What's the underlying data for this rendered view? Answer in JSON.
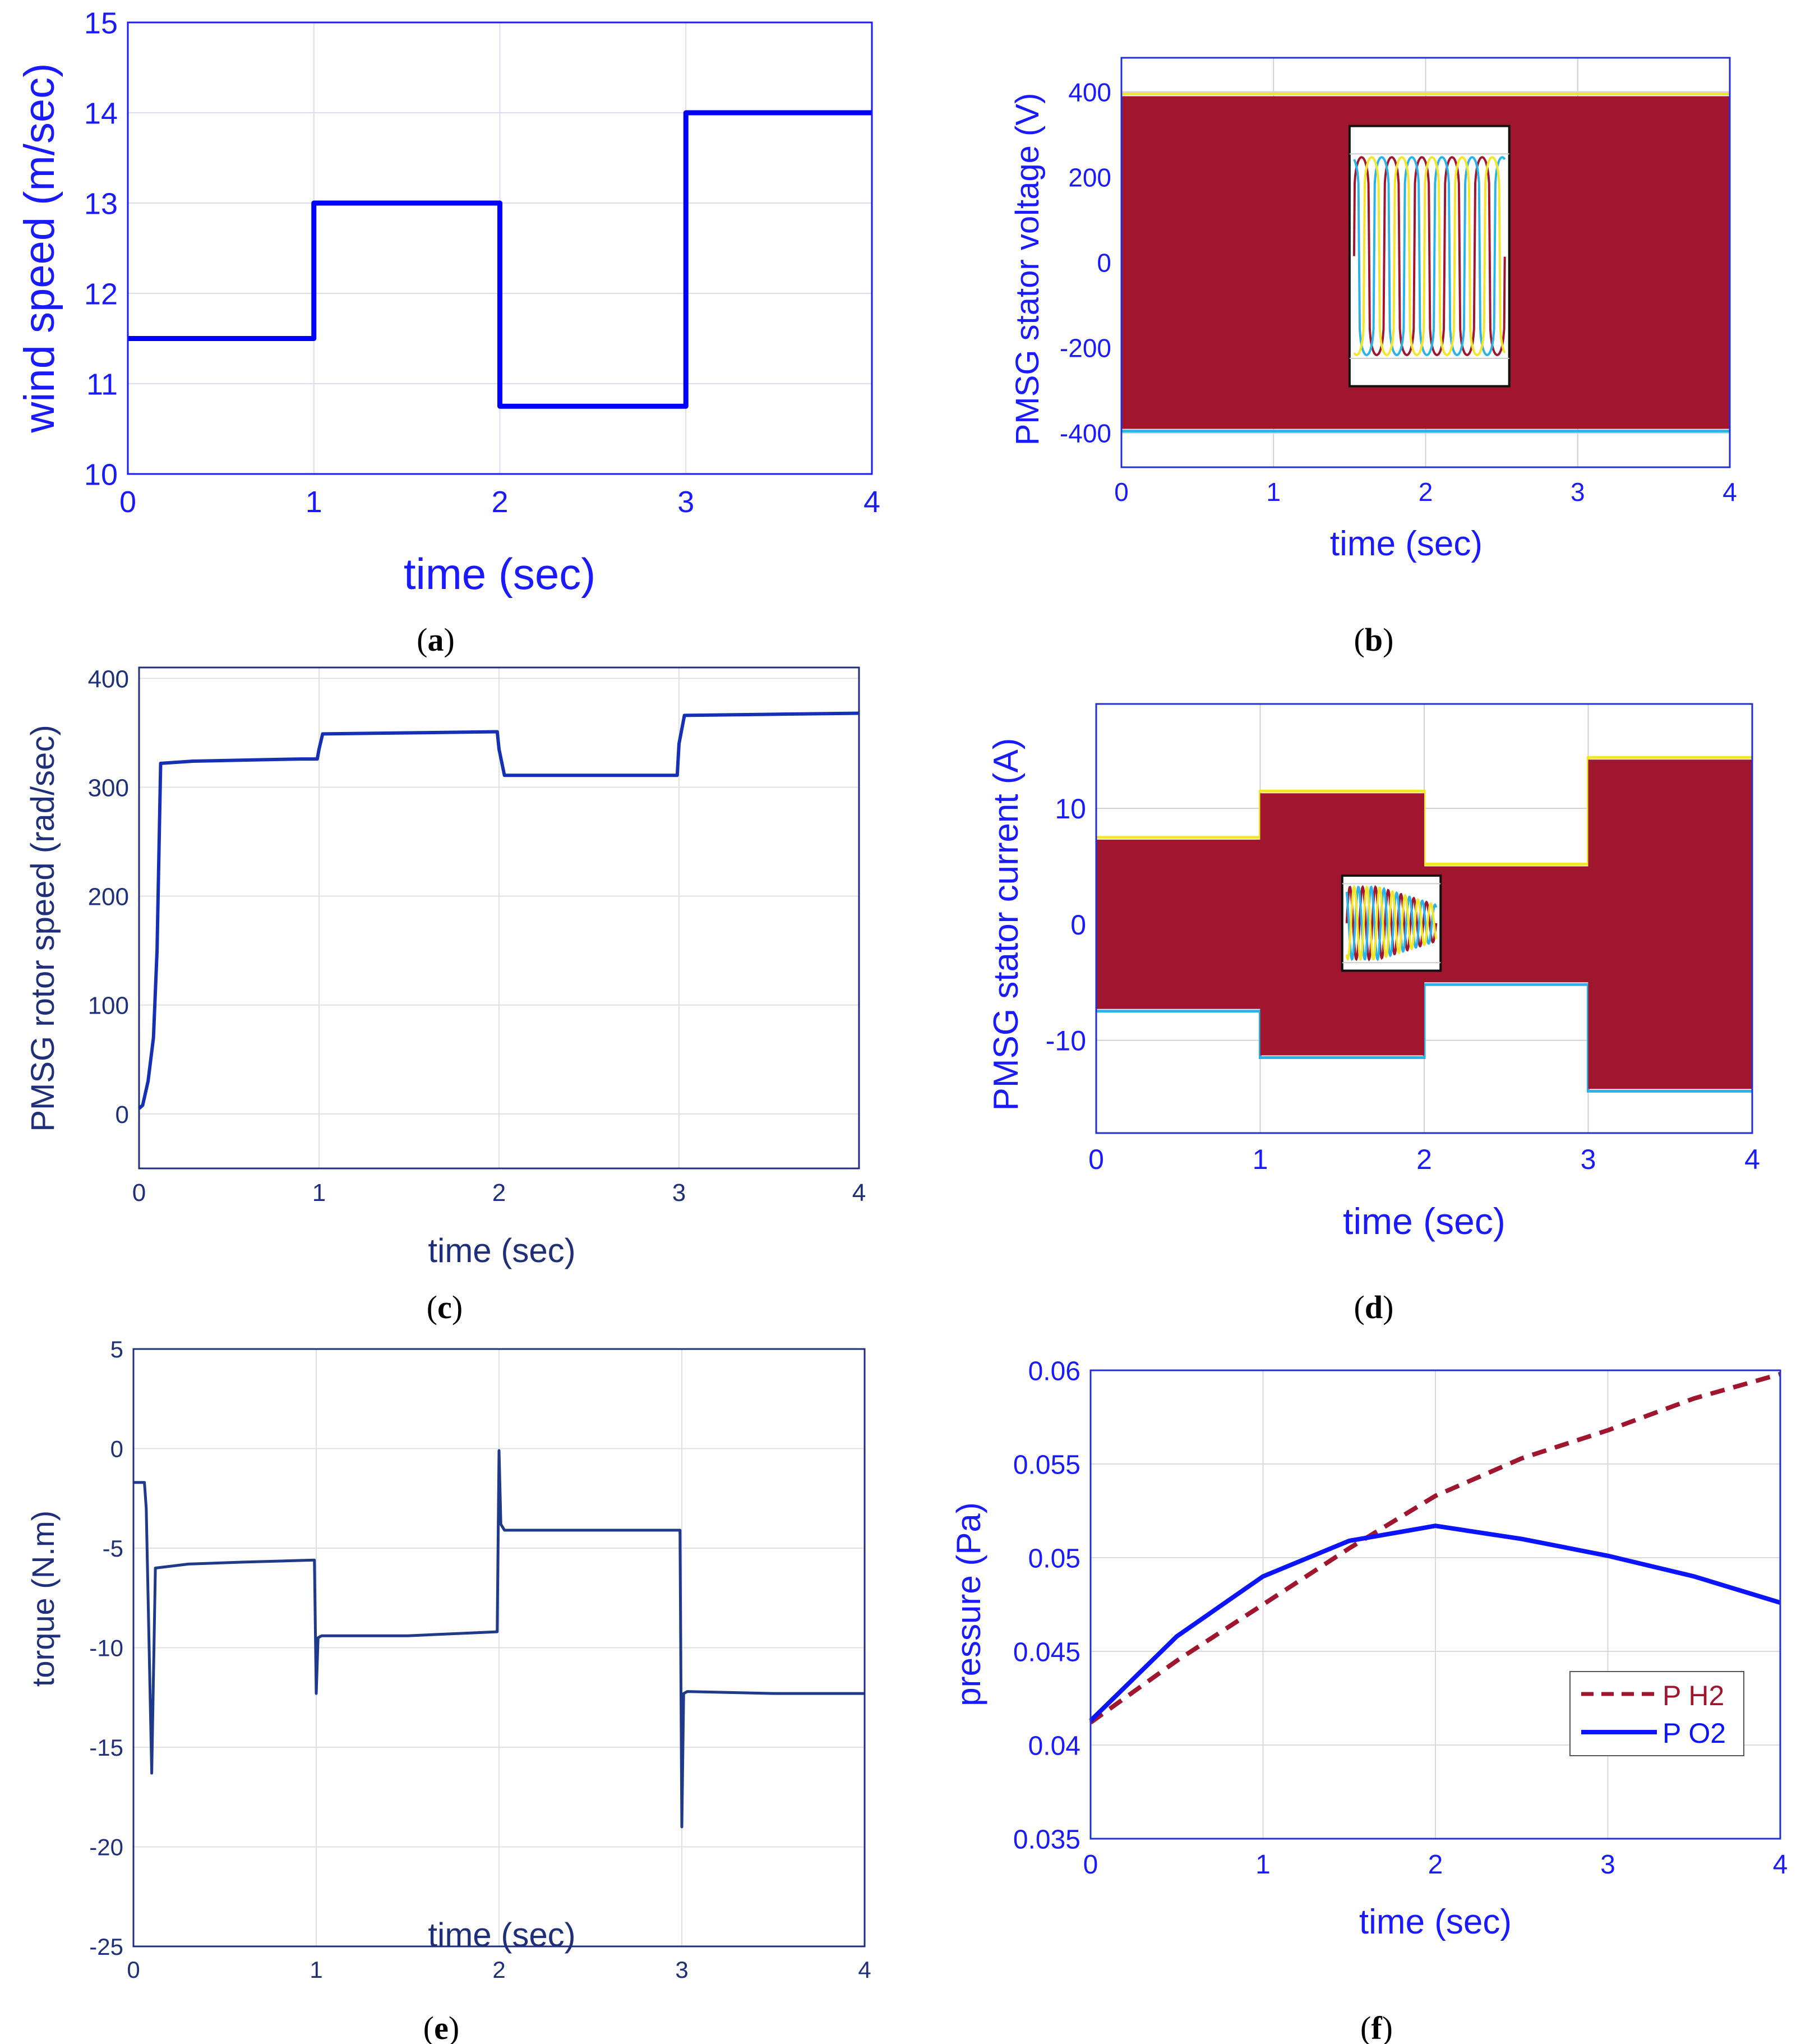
{
  "chart_data": [
    {
      "id": "a",
      "type": "line",
      "caption": "a",
      "xlabel": "time (sec)",
      "ylabel": "wind speed (m/sec)",
      "xlim": [
        0,
        4
      ],
      "ylim": [
        10,
        15
      ],
      "xticks": [
        0,
        1,
        2,
        3,
        4
      ],
      "yticks": [
        10,
        11,
        12,
        13,
        14,
        15
      ],
      "grid": true,
      "colors": {
        "axis": "#1a1aff",
        "series": "#0000ff",
        "grid": "#d9dcf2"
      },
      "series": [
        {
          "name": "wind speed",
          "style": "solid",
          "x": [
            0,
            1,
            1,
            2,
            2,
            3,
            3,
            4
          ],
          "y": [
            11.5,
            11.5,
            13,
            13,
            10.75,
            10.75,
            14,
            14
          ]
        }
      ]
    },
    {
      "id": "b",
      "type": "area",
      "caption": "b",
      "xlabel": "time (sec)",
      "ylabel": "PMSG stator voltage (V)",
      "xlim": [
        0,
        4
      ],
      "ylim": [
        -480,
        480
      ],
      "xticks": [
        0,
        1,
        2,
        3,
        4
      ],
      "yticks": [
        -400,
        -200,
        0,
        200,
        400
      ],
      "grid": true,
      "colors": {
        "axis": "#1a1aff",
        "fill": "#a0162e",
        "phase_b": "#2ab3e8",
        "phase_c": "#f2e52a",
        "grid": "#d0d0d0"
      },
      "envelope": {
        "x": [
          0,
          4
        ],
        "upper": [
          390,
          390
        ],
        "lower": [
          -390,
          -390
        ]
      },
      "inset": {
        "x_range": [
          1.5,
          2.55
        ],
        "y_range": [
          -290,
          320
        ],
        "note": "zoomed three-phase sine waveforms"
      }
    },
    {
      "id": "c",
      "type": "line",
      "caption": "c",
      "xlabel": "time (sec)",
      "ylabel": "PMSG rotor speed (rad/sec)",
      "xlim": [
        0,
        4
      ],
      "ylim": [
        -50,
        410
      ],
      "xticks": [
        0,
        1,
        2,
        3,
        4
      ],
      "yticks": [
        0,
        100,
        200,
        300,
        400
      ],
      "grid": true,
      "colors": {
        "axis": "#1f2f7a",
        "series": "#1530b5",
        "grid": "#e0e0e0"
      },
      "series": [
        {
          "name": "rotor speed",
          "style": "solid",
          "x": [
            0,
            0.02,
            0.05,
            0.08,
            0.1,
            0.12,
            0.3,
            0.6,
            0.9,
            0.99,
            1.0,
            1.02,
            1.5,
            1.99,
            2.0,
            2.03,
            2.5,
            2.99,
            3.0,
            3.03,
            3.5,
            4.0
          ],
          "y": [
            5,
            8,
            30,
            70,
            150,
            322,
            324,
            325,
            326,
            326,
            335,
            349,
            350,
            351,
            335,
            311,
            311,
            311,
            340,
            366,
            367,
            368
          ]
        }
      ]
    },
    {
      "id": "d",
      "type": "area",
      "caption": "d",
      "xlabel": "time (sec)",
      "ylabel": "PMSG stator current (A)",
      "xlim": [
        0,
        4
      ],
      "ylim": [
        -18,
        19
      ],
      "xticks": [
        0,
        1,
        2,
        3,
        4
      ],
      "yticks": [
        -10,
        0,
        10
      ],
      "grid": true,
      "colors": {
        "axis": "#1a1aff",
        "fill": "#a0162e",
        "phase_b": "#2ab3e8",
        "phase_c": "#f2e52a",
        "grid": "#d0d0d0"
      },
      "envelope": {
        "x": [
          0,
          1,
          1,
          2,
          2,
          3,
          3,
          4
        ],
        "upper": [
          7.3,
          7.3,
          11.3,
          11.3,
          5,
          5,
          14.2,
          14.2
        ],
        "lower": [
          -7.3,
          -7.3,
          -11.3,
          -11.3,
          -5,
          -5,
          -14.2,
          -14.2
        ]
      },
      "inset": {
        "x_range": [
          1.5,
          2.1
        ],
        "y_range": [
          -4,
          4.2
        ],
        "note": "zoomed transient waveforms"
      }
    },
    {
      "id": "e",
      "type": "line",
      "caption": "e",
      "xlabel": "time (sec)",
      "ylabel": "torque (N.m)",
      "xlim": [
        0,
        4
      ],
      "ylim": [
        -25,
        5
      ],
      "xticks": [
        0,
        1,
        2,
        3,
        4
      ],
      "xticklabels": [
        "0",
        "1",
        "2",
        "3",
        "4"
      ],
      "yticks": [
        -25,
        -20,
        -15,
        -10,
        -5,
        0,
        5
      ],
      "grid": true,
      "colors": {
        "axis": "#1f2f7a",
        "series": "#1f3a8a",
        "grid": "#e0e0e0"
      },
      "series": [
        {
          "name": "torque",
          "style": "solid",
          "x": [
            0,
            0.06,
            0.07,
            0.1,
            0.12,
            0.3,
            0.6,
            0.99,
            1.0,
            1.01,
            1.03,
            1.5,
            1.99,
            2.0,
            2.01,
            2.03,
            2.5,
            2.99,
            3.0,
            3.01,
            3.03,
            3.5,
            4.0
          ],
          "y": [
            -1.7,
            -1.7,
            -3,
            -16.3,
            -6,
            -5.8,
            -5.7,
            -5.6,
            -12.3,
            -9.5,
            -9.4,
            -9.4,
            -9.2,
            -0.1,
            -3.8,
            -4.1,
            -4.1,
            -4.1,
            -19,
            -12.3,
            -12.2,
            -12.3,
            -12.3
          ]
        }
      ]
    },
    {
      "id": "f",
      "type": "line",
      "caption": "f",
      "xlabel": "time (sec)",
      "ylabel": "pressure (Pa)",
      "xlim": [
        0,
        4
      ],
      "ylim": [
        0.035,
        0.06
      ],
      "xticks": [
        0,
        1,
        2,
        3,
        4
      ],
      "yticks": [
        0.035,
        0.04,
        0.045,
        0.05,
        0.055,
        0.06
      ],
      "yticklabels": [
        "0.035",
        "0.04",
        "0.045",
        "0.05",
        "0.055",
        "0.06"
      ],
      "grid": true,
      "legend": "bottom-right",
      "colors": {
        "axis": "#1a1aff",
        "grid": "#d9d9d9"
      },
      "series": [
        {
          "name": "P H2",
          "style": "dashed",
          "color": "#a0162e",
          "x": [
            0,
            0.5,
            1,
            1.5,
            2,
            2.5,
            3,
            3.5,
            4
          ],
          "y": [
            0.0412,
            0.0445,
            0.0475,
            0.0505,
            0.0533,
            0.0553,
            0.0568,
            0.0585,
            0.0598
          ]
        },
        {
          "name": "P O2",
          "style": "solid",
          "color": "#0a14ff",
          "x": [
            0,
            0.5,
            1,
            1.5,
            2,
            2.5,
            3,
            3.5,
            4
          ],
          "y": [
            0.0413,
            0.0458,
            0.049,
            0.0509,
            0.0517,
            0.051,
            0.0501,
            0.049,
            0.0476
          ]
        }
      ]
    }
  ]
}
